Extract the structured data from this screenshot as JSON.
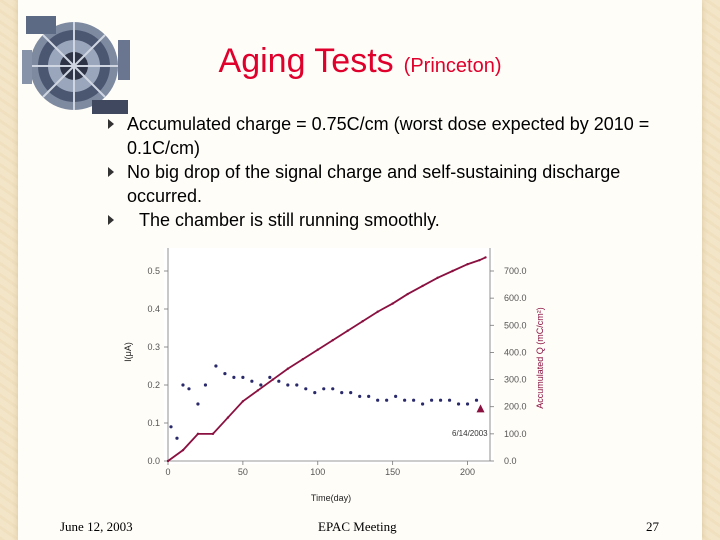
{
  "slide": {
    "title": "Aging Tests",
    "title_sub": "(Princeton)",
    "bullets": [
      "Accumulated charge = 0.75C/cm (worst dose expected by 2010 = 0.1C/cm)",
      "No big drop of the signal charge and self-sustaining discharge occurred.",
      "The chamber is still running smoothly."
    ],
    "logo_icon": "detector-photo-icon"
  },
  "footer": {
    "date": "June 12, 2003",
    "meeting": "EPAC  Meeting",
    "page": "27"
  },
  "chart_data": {
    "type": "scatter",
    "xlabel": "Time(day)",
    "ylabel": "I(μA)",
    "y2label": "Accumulated Q (mC/cm²)",
    "annotation": "6/14/2003",
    "x_ticks": [
      "0",
      "50",
      "100",
      "150",
      "200"
    ],
    "y_ticks": [
      "0.0",
      "0.1",
      "0.2",
      "0.3",
      "0.4",
      "0.5"
    ],
    "y2_ticks": [
      "0.0",
      "100.0",
      "200.0",
      "300.0",
      "400.0",
      "500.0",
      "600.0",
      "700.0"
    ],
    "xlim": [
      0,
      215
    ],
    "ylim": [
      0,
      0.55
    ],
    "y2lim": [
      0,
      770
    ],
    "grid": false,
    "colors": {
      "current": "#2a2a6a",
      "charge": "#8a1040",
      "marker": "#8a1040"
    },
    "series": [
      {
        "name": "I(μA)",
        "axis": "left",
        "x": [
          2,
          6,
          10,
          14,
          20,
          25,
          32,
          38,
          44,
          50,
          56,
          62,
          68,
          74,
          80,
          86,
          92,
          98,
          104,
          110,
          116,
          122,
          128,
          134,
          140,
          146,
          152,
          158,
          164,
          170,
          176,
          182,
          188,
          194,
          200,
          206
        ],
        "y": [
          0.09,
          0.06,
          0.2,
          0.19,
          0.15,
          0.2,
          0.25,
          0.23,
          0.22,
          0.22,
          0.21,
          0.2,
          0.22,
          0.21,
          0.2,
          0.2,
          0.19,
          0.18,
          0.19,
          0.19,
          0.18,
          0.18,
          0.17,
          0.17,
          0.16,
          0.16,
          0.17,
          0.16,
          0.16,
          0.15,
          0.16,
          0.16,
          0.16,
          0.15,
          0.15,
          0.16
        ]
      },
      {
        "name": "Accumulated Q",
        "axis": "right",
        "x": [
          0,
          10,
          20,
          30,
          40,
          50,
          60,
          70,
          80,
          90,
          100,
          110,
          120,
          130,
          140,
          150,
          160,
          170,
          180,
          190,
          200,
          208,
          212
        ],
        "y": [
          0,
          40,
          100,
          100,
          160,
          220,
          260,
          300,
          340,
          375,
          410,
          445,
          480,
          515,
          550,
          580,
          615,
          645,
          675,
          700,
          725,
          740,
          750
        ]
      }
    ]
  }
}
